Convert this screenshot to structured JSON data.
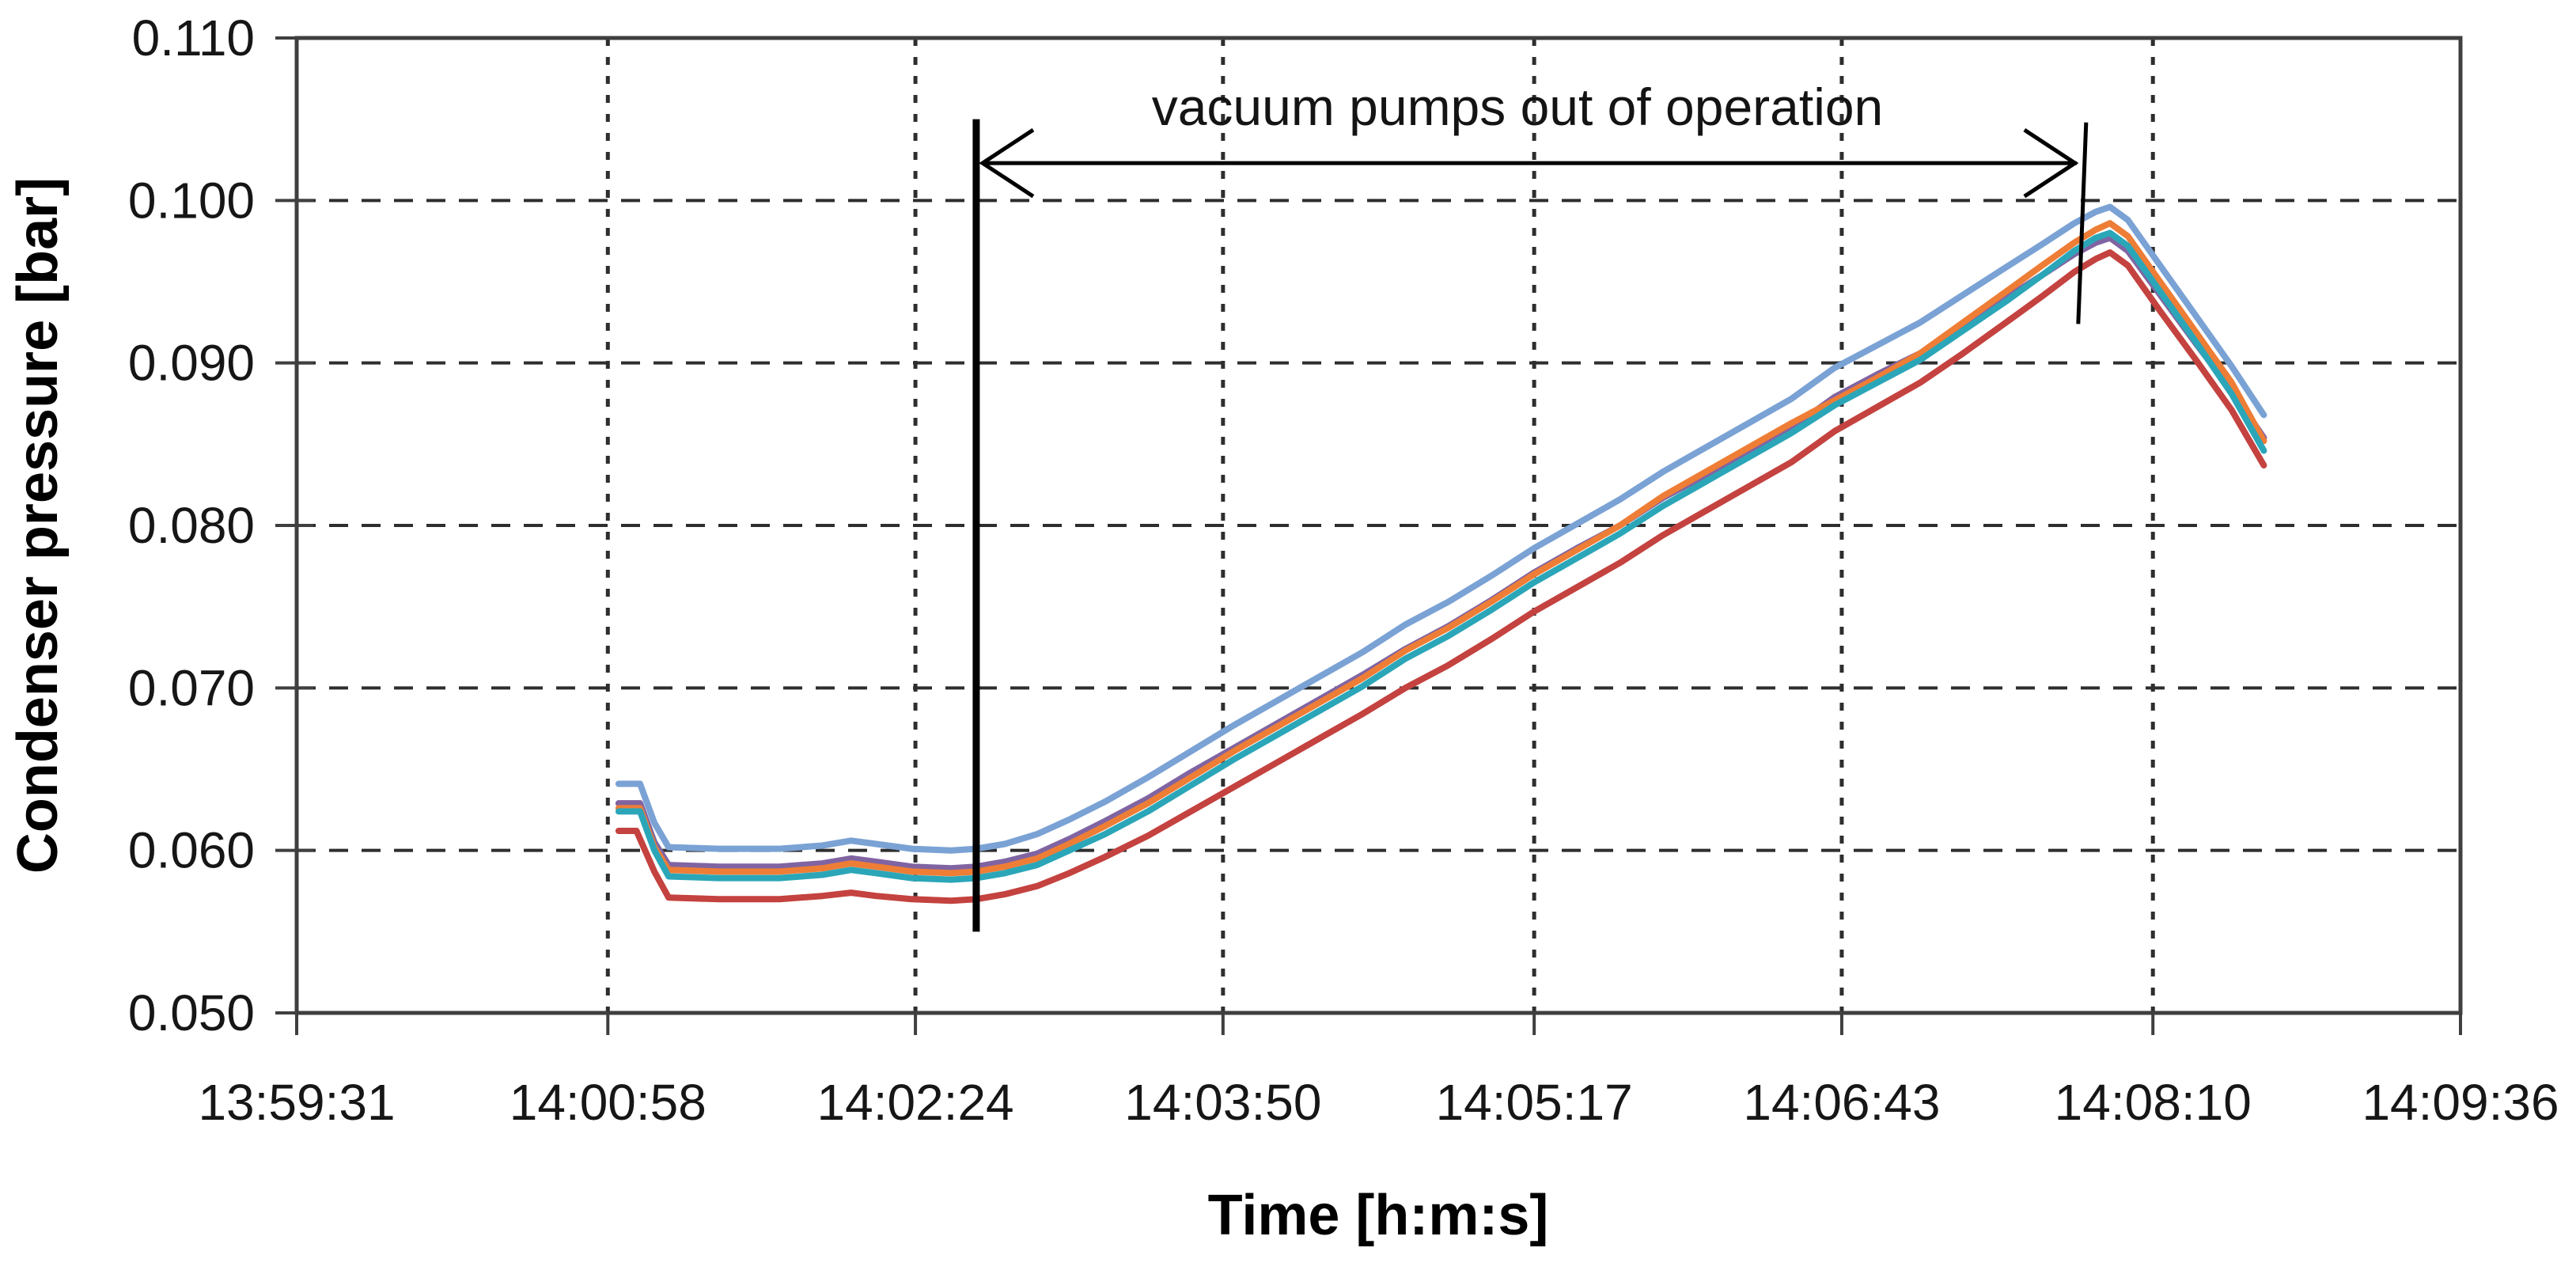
{
  "chart_data": {
    "type": "line",
    "title": "",
    "xlabel": "Time [h:m:s]",
    "ylabel": "Condenser pressure [bar]",
    "legend": "none",
    "grid": {
      "horizontal": "dashed",
      "vertical": "dashed"
    },
    "ylim": [
      0.05,
      0.11
    ],
    "xlim_seconds": [
      0,
      605
    ],
    "x_time_origin_label": "13:59:31",
    "x_ticks": [
      {
        "label": "13:59:31",
        "seconds": 0
      },
      {
        "label": "14:00:58",
        "seconds": 87
      },
      {
        "label": "14:02:24",
        "seconds": 173
      },
      {
        "label": "14:03:50",
        "seconds": 259
      },
      {
        "label": "14:05:17",
        "seconds": 346
      },
      {
        "label": "14:06:43",
        "seconds": 432
      },
      {
        "label": "14:08:10",
        "seconds": 519
      },
      {
        "label": "14:09:36",
        "seconds": 605
      }
    ],
    "y_ticks": [
      {
        "label": "0.110",
        "value": 0.11
      },
      {
        "label": "0.100",
        "value": 0.1
      },
      {
        "label": "0.090",
        "value": 0.09
      },
      {
        "label": "0.080",
        "value": 0.08
      },
      {
        "label": "0.070",
        "value": 0.07
      },
      {
        "label": "0.060",
        "value": 0.06
      },
      {
        "label": "0.050",
        "value": 0.05
      }
    ],
    "annotations": [
      {
        "text": "vacuum pumps out of operation",
        "type": "interval-arrow",
        "start_seconds": 190,
        "end_seconds": 499,
        "arrow_pressure": 0.1023,
        "start_line_pressure_top": 0.105,
        "start_line_pressure_bottom": 0.055,
        "end_marker_pressure_top": 0.1048,
        "end_marker_pressure_bottom": 0.0924
      }
    ],
    "series": [
      {
        "name": "series_blue",
        "color": "#7AA2D4",
        "points": [
          [
            90,
            0.0641
          ],
          [
            96,
            0.0641
          ],
          [
            100,
            0.0617
          ],
          [
            104,
            0.0602
          ],
          [
            118,
            0.0601
          ],
          [
            135,
            0.0601
          ],
          [
            147,
            0.0603
          ],
          [
            155,
            0.0606
          ],
          [
            162,
            0.0604
          ],
          [
            172,
            0.0601
          ],
          [
            183,
            0.06
          ],
          [
            190,
            0.0601
          ],
          [
            198,
            0.0604
          ],
          [
            207,
            0.061
          ],
          [
            216,
            0.0619
          ],
          [
            226,
            0.063
          ],
          [
            238,
            0.0645
          ],
          [
            250,
            0.0661
          ],
          [
            262,
            0.0677
          ],
          [
            274,
            0.0692
          ],
          [
            286,
            0.0707
          ],
          [
            298,
            0.0722
          ],
          [
            310,
            0.0739
          ],
          [
            322,
            0.0753
          ],
          [
            334,
            0.0769
          ],
          [
            346,
            0.0786
          ],
          [
            358,
            0.0801
          ],
          [
            370,
            0.0816
          ],
          [
            382,
            0.0833
          ],
          [
            394,
            0.0848
          ],
          [
            406,
            0.0863
          ],
          [
            418,
            0.0878
          ],
          [
            430,
            0.0897
          ],
          [
            442,
            0.0911
          ],
          [
            454,
            0.0925
          ],
          [
            466,
            0.0942
          ],
          [
            478,
            0.0959
          ],
          [
            488,
            0.0973
          ],
          [
            497,
            0.0986
          ],
          [
            503,
            0.0993
          ],
          [
            507,
            0.0996
          ],
          [
            512,
            0.0988
          ],
          [
            521,
            0.096
          ],
          [
            531,
            0.0929
          ],
          [
            541,
            0.0898
          ],
          [
            550,
            0.0868
          ]
        ]
      },
      {
        "name": "series_purple",
        "color": "#8064A2",
        "points": [
          [
            90,
            0.0629
          ],
          [
            96,
            0.0629
          ],
          [
            100,
            0.0605
          ],
          [
            104,
            0.0591
          ],
          [
            118,
            0.059
          ],
          [
            135,
            0.059
          ],
          [
            147,
            0.0592
          ],
          [
            155,
            0.0595
          ],
          [
            162,
            0.0593
          ],
          [
            172,
            0.059
          ],
          [
            183,
            0.0589
          ],
          [
            190,
            0.059
          ],
          [
            198,
            0.0593
          ],
          [
            207,
            0.0598
          ],
          [
            216,
            0.0607
          ],
          [
            226,
            0.0618
          ],
          [
            238,
            0.0632
          ],
          [
            250,
            0.0648
          ],
          [
            262,
            0.0663
          ],
          [
            274,
            0.0678
          ],
          [
            286,
            0.0693
          ],
          [
            298,
            0.0708
          ],
          [
            310,
            0.0724
          ],
          [
            322,
            0.0738
          ],
          [
            334,
            0.0754
          ],
          [
            346,
            0.0771
          ],
          [
            358,
            0.0786
          ],
          [
            370,
            0.08
          ],
          [
            382,
            0.0817
          ],
          [
            394,
            0.0831
          ],
          [
            406,
            0.0846
          ],
          [
            418,
            0.086
          ],
          [
            430,
            0.0879
          ],
          [
            442,
            0.0893
          ],
          [
            454,
            0.0906
          ],
          [
            466,
            0.0923
          ],
          [
            478,
            0.094
          ],
          [
            488,
            0.0954
          ],
          [
            497,
            0.0967
          ],
          [
            503,
            0.0974
          ],
          [
            507,
            0.0977
          ],
          [
            512,
            0.0969
          ],
          [
            521,
            0.0942
          ],
          [
            531,
            0.0912
          ],
          [
            541,
            0.0883
          ],
          [
            550,
            0.0854
          ]
        ]
      },
      {
        "name": "series_orange",
        "color": "#EE7D36",
        "points": [
          [
            90,
            0.0626
          ],
          [
            96,
            0.0626
          ],
          [
            100,
            0.0602
          ],
          [
            104,
            0.0588
          ],
          [
            118,
            0.0587
          ],
          [
            135,
            0.0587
          ],
          [
            147,
            0.0589
          ],
          [
            155,
            0.0592
          ],
          [
            162,
            0.059
          ],
          [
            172,
            0.0587
          ],
          [
            183,
            0.0586
          ],
          [
            190,
            0.0587
          ],
          [
            198,
            0.059
          ],
          [
            207,
            0.0595
          ],
          [
            216,
            0.0604
          ],
          [
            226,
            0.0615
          ],
          [
            238,
            0.0629
          ],
          [
            250,
            0.0645
          ],
          [
            262,
            0.0661
          ],
          [
            274,
            0.0676
          ],
          [
            286,
            0.0691
          ],
          [
            298,
            0.0706
          ],
          [
            310,
            0.0723
          ],
          [
            322,
            0.0737
          ],
          [
            334,
            0.0753
          ],
          [
            346,
            0.077
          ],
          [
            358,
            0.0785
          ],
          [
            370,
            0.08
          ],
          [
            382,
            0.0818
          ],
          [
            394,
            0.0833
          ],
          [
            406,
            0.0848
          ],
          [
            418,
            0.0863
          ],
          [
            430,
            0.0877
          ],
          [
            442,
            0.0891
          ],
          [
            454,
            0.0906
          ],
          [
            466,
            0.0925
          ],
          [
            478,
            0.0944
          ],
          [
            488,
            0.096
          ],
          [
            497,
            0.0974
          ],
          [
            503,
            0.0982
          ],
          [
            507,
            0.0986
          ],
          [
            512,
            0.0978
          ],
          [
            521,
            0.095
          ],
          [
            531,
            0.0919
          ],
          [
            541,
            0.0888
          ],
          [
            550,
            0.0852
          ]
        ]
      },
      {
        "name": "series_teal",
        "color": "#2BA6B8",
        "points": [
          [
            90,
            0.0624
          ],
          [
            96,
            0.0624
          ],
          [
            100,
            0.06
          ],
          [
            104,
            0.0584
          ],
          [
            118,
            0.0583
          ],
          [
            135,
            0.0583
          ],
          [
            147,
            0.0585
          ],
          [
            155,
            0.0588
          ],
          [
            162,
            0.0586
          ],
          [
            172,
            0.0583
          ],
          [
            183,
            0.0582
          ],
          [
            190,
            0.0583
          ],
          [
            198,
            0.0586
          ],
          [
            207,
            0.0591
          ],
          [
            216,
            0.06
          ],
          [
            226,
            0.061
          ],
          [
            238,
            0.0624
          ],
          [
            250,
            0.064
          ],
          [
            262,
            0.0656
          ],
          [
            274,
            0.0671
          ],
          [
            286,
            0.0686
          ],
          [
            298,
            0.0701
          ],
          [
            310,
            0.0718
          ],
          [
            322,
            0.0732
          ],
          [
            334,
            0.0748
          ],
          [
            346,
            0.0765
          ],
          [
            358,
            0.078
          ],
          [
            370,
            0.0795
          ],
          [
            382,
            0.0812
          ],
          [
            394,
            0.0827
          ],
          [
            406,
            0.0842
          ],
          [
            418,
            0.0857
          ],
          [
            430,
            0.0874
          ],
          [
            442,
            0.0888
          ],
          [
            454,
            0.0902
          ],
          [
            466,
            0.092
          ],
          [
            478,
            0.0938
          ],
          [
            488,
            0.0954
          ],
          [
            497,
            0.0969
          ],
          [
            503,
            0.0977
          ],
          [
            507,
            0.098
          ],
          [
            512,
            0.0972
          ],
          [
            521,
            0.0944
          ],
          [
            531,
            0.0913
          ],
          [
            541,
            0.0881
          ],
          [
            550,
            0.0846
          ]
        ]
      },
      {
        "name": "series_red",
        "color": "#C4423F",
        "points": [
          [
            90,
            0.0612
          ],
          [
            95,
            0.0612
          ],
          [
            100,
            0.0587
          ],
          [
            104,
            0.0571
          ],
          [
            118,
            0.057
          ],
          [
            135,
            0.057
          ],
          [
            147,
            0.0572
          ],
          [
            155,
            0.0574
          ],
          [
            162,
            0.0572
          ],
          [
            172,
            0.057
          ],
          [
            183,
            0.0569
          ],
          [
            190,
            0.057
          ],
          [
            198,
            0.0573
          ],
          [
            207,
            0.0578
          ],
          [
            216,
            0.0586
          ],
          [
            226,
            0.0596
          ],
          [
            238,
            0.0609
          ],
          [
            250,
            0.0624
          ],
          [
            262,
            0.0639
          ],
          [
            274,
            0.0654
          ],
          [
            286,
            0.0669
          ],
          [
            298,
            0.0684
          ],
          [
            310,
            0.07
          ],
          [
            322,
            0.0714
          ],
          [
            334,
            0.073
          ],
          [
            346,
            0.0747
          ],
          [
            358,
            0.0762
          ],
          [
            370,
            0.0777
          ],
          [
            382,
            0.0794
          ],
          [
            394,
            0.0809
          ],
          [
            406,
            0.0824
          ],
          [
            418,
            0.0839
          ],
          [
            430,
            0.0858
          ],
          [
            442,
            0.0873
          ],
          [
            454,
            0.0888
          ],
          [
            466,
            0.0906
          ],
          [
            478,
            0.0925
          ],
          [
            488,
            0.0941
          ],
          [
            497,
            0.0956
          ],
          [
            503,
            0.0964
          ],
          [
            507,
            0.0968
          ],
          [
            512,
            0.096
          ],
          [
            521,
            0.0932
          ],
          [
            531,
            0.0902
          ],
          [
            541,
            0.0871
          ],
          [
            550,
            0.0837
          ]
        ]
      }
    ],
    "axis_color": "#3f3f3f",
    "annotation_color": "#000000"
  }
}
